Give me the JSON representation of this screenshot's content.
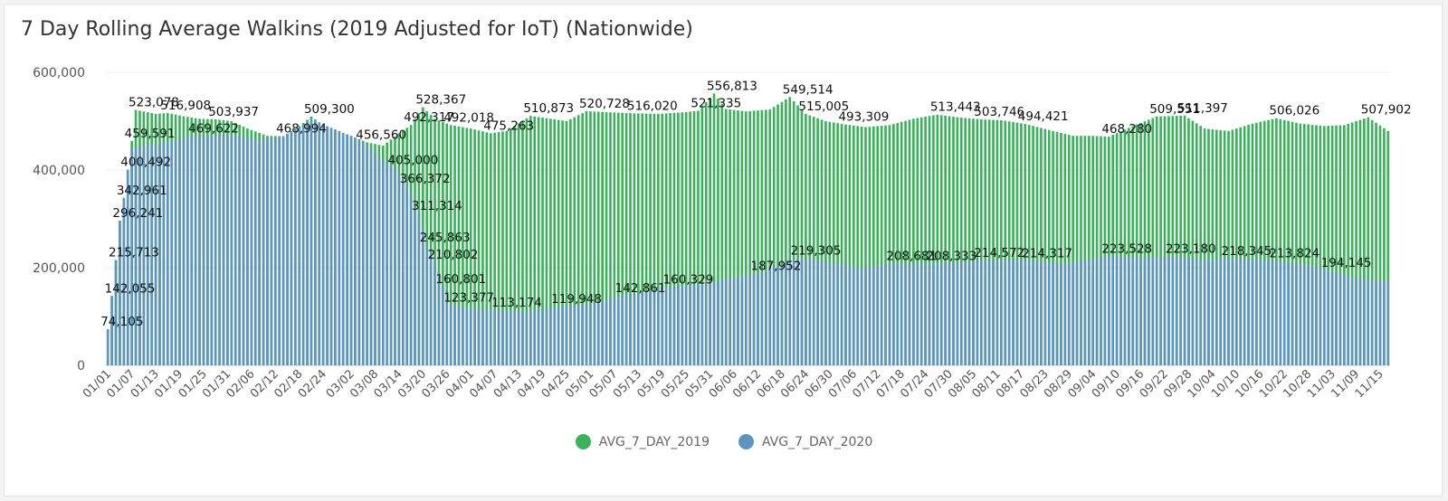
{
  "chart_data": {
    "type": "bar",
    "title": "7 Day Rolling Average Walkins (2019 Adjusted for IoT) (Nationwide)",
    "xlabel": "",
    "ylabel": "",
    "ylim": [
      0,
      600000
    ],
    "yticks": [
      0,
      200000,
      400000,
      600000
    ],
    "ytick_labels": [
      "0",
      "200,000",
      "400,000",
      "600,000"
    ],
    "grid": true,
    "legend_position": "bottom",
    "stacking": "overlaid",
    "x_range": [
      "01/01",
      "11/17"
    ],
    "x_tick_labels": [
      "01/01",
      "01/07",
      "01/13",
      "01/19",
      "01/25",
      "01/31",
      "02/06",
      "02/12",
      "02/18",
      "02/24",
      "03/02",
      "03/08",
      "03/14",
      "03/20",
      "03/26",
      "04/01",
      "04/07",
      "04/13",
      "04/19",
      "04/25",
      "05/01",
      "05/07",
      "05/13",
      "05/19",
      "05/25",
      "05/31",
      "06/06",
      "06/12",
      "06/18",
      "06/24",
      "06/30",
      "07/06",
      "07/12",
      "07/18",
      "07/24",
      "07/30",
      "08/05",
      "08/11",
      "08/17",
      "08/23",
      "08/29",
      "09/04",
      "09/10",
      "09/16",
      "09/22",
      "09/28",
      "10/04",
      "10/10",
      "10/16",
      "10/22",
      "10/28",
      "11/03",
      "11/09",
      "11/15"
    ],
    "series": [
      {
        "name": "AVG_7_DAY_2019",
        "color": "#3cb15b",
        "points": [
          [
            "01/01",
            74105
          ],
          [
            "01/02",
            142055
          ],
          [
            "01/03",
            215713
          ],
          [
            "01/04",
            296241
          ],
          [
            "01/05",
            342961
          ],
          [
            "01/06",
            400492
          ],
          [
            "01/07",
            459591
          ],
          [
            "01/08",
            523078
          ],
          [
            "01/13",
            515000
          ],
          [
            "01/16",
            516908
          ],
          [
            "01/20",
            510000
          ],
          [
            "01/24",
            505000
          ],
          [
            "01/28",
            503937
          ],
          [
            "02/01",
            500000
          ],
          [
            "02/05",
            485000
          ],
          [
            "02/10",
            470000
          ],
          [
            "02/14",
            468994
          ],
          [
            "02/18",
            490000
          ],
          [
            "02/21",
            509300
          ],
          [
            "02/24",
            492000
          ],
          [
            "02/27",
            482000
          ],
          [
            "03/02",
            470000
          ],
          [
            "03/06",
            456560
          ],
          [
            "03/10",
            450000
          ],
          [
            "03/14",
            475000
          ],
          [
            "03/17",
            492317
          ],
          [
            "03/20",
            528367
          ],
          [
            "03/23",
            505000
          ],
          [
            "03/27",
            492018
          ],
          [
            "04/01",
            485000
          ],
          [
            "04/06",
            475263
          ],
          [
            "04/10",
            480000
          ],
          [
            "04/16",
            510873
          ],
          [
            "04/21",
            505000
          ],
          [
            "04/25",
            500000
          ],
          [
            "04/30",
            520728
          ],
          [
            "05/06",
            518000
          ],
          [
            "05/12",
            516020
          ],
          [
            "05/18",
            515000
          ],
          [
            "05/24",
            518000
          ],
          [
            "05/28",
            521335
          ],
          [
            "06/01",
            556813
          ],
          [
            "06/04",
            525000
          ],
          [
            "06/09",
            520000
          ],
          [
            "06/15",
            524000
          ],
          [
            "06/20",
            549514
          ],
          [
            "06/24",
            515005
          ],
          [
            "06/29",
            500000
          ],
          [
            "07/04",
            493309
          ],
          [
            "07/09",
            488000
          ],
          [
            "07/15",
            492000
          ],
          [
            "07/21",
            505000
          ],
          [
            "07/27",
            513443
          ],
          [
            "08/01",
            508000
          ],
          [
            "08/07",
            503746
          ],
          [
            "08/12",
            502000
          ],
          [
            "08/18",
            494421
          ],
          [
            "08/25",
            480000
          ],
          [
            "08/30",
            470000
          ],
          [
            "09/04",
            470000
          ],
          [
            "09/08",
            468280
          ],
          [
            "09/14",
            490000
          ],
          [
            "09/20",
            509551
          ],
          [
            "09/27",
            511397
          ],
          [
            "10/02",
            485000
          ],
          [
            "10/08",
            480000
          ],
          [
            "10/14",
            495000
          ],
          [
            "10/20",
            506026
          ],
          [
            "10/26",
            495000
          ],
          [
            "11/01",
            490000
          ],
          [
            "11/06",
            492000
          ],
          [
            "11/12",
            507902
          ],
          [
            "11/17",
            480000
          ]
        ]
      },
      {
        "name": "AVG_7_DAY_2020",
        "color": "#5e95c0",
        "points": [
          [
            "01/01",
            74105
          ],
          [
            "01/02",
            142055
          ],
          [
            "01/03",
            215713
          ],
          [
            "01/04",
            296241
          ],
          [
            "01/05",
            342961
          ],
          [
            "01/06",
            400492
          ],
          [
            "01/07",
            445000
          ],
          [
            "01/12",
            452000
          ],
          [
            "01/17",
            460000
          ],
          [
            "01/23",
            469622
          ],
          [
            "01/31",
            472000
          ],
          [
            "02/08",
            462000
          ],
          [
            "02/14",
            468994
          ],
          [
            "02/21",
            503000
          ],
          [
            "02/28",
            480000
          ],
          [
            "03/05",
            456560
          ],
          [
            "03/10",
            420000
          ],
          [
            "03/13",
            405000
          ],
          [
            "03/16",
            366372
          ],
          [
            "03/19",
            311314
          ],
          [
            "03/21",
            245863
          ],
          [
            "03/23",
            210802
          ],
          [
            "03/25",
            160801
          ],
          [
            "03/27",
            123377
          ],
          [
            "03/31",
            118000
          ],
          [
            "04/08",
            113174
          ],
          [
            "04/15",
            110000
          ],
          [
            "04/23",
            119948
          ],
          [
            "05/01",
            125000
          ],
          [
            "05/09",
            142861
          ],
          [
            "05/21",
            160329
          ],
          [
            "05/28",
            165000
          ],
          [
            "06/06",
            180000
          ],
          [
            "06/12",
            187952
          ],
          [
            "06/22",
            219305
          ],
          [
            "06/26",
            215000
          ],
          [
            "07/04",
            205000
          ],
          [
            "07/08",
            198000
          ],
          [
            "07/16",
            208681
          ],
          [
            "07/26",
            208333
          ],
          [
            "08/07",
            214572
          ],
          [
            "08/19",
            214317
          ],
          [
            "08/28",
            208000
          ],
          [
            "09/08",
            223528
          ],
          [
            "09/16",
            220000
          ],
          [
            "09/24",
            223180
          ],
          [
            "10/01",
            216000
          ],
          [
            "10/08",
            218345
          ],
          [
            "10/20",
            213824
          ],
          [
            "10/28",
            205000
          ],
          [
            "11/02",
            194145
          ],
          [
            "11/08",
            180000
          ],
          [
            "11/17",
            172000
          ]
        ]
      }
    ],
    "data_labels": [
      {
        "series": "AVG_7_DAY_2020",
        "x": "01/01",
        "value": 74105,
        "text": "74,105"
      },
      {
        "series": "AVG_7_DAY_2020",
        "x": "01/02",
        "value": 142055,
        "text": "142,055"
      },
      {
        "series": "AVG_7_DAY_2020",
        "x": "01/03",
        "value": 215713,
        "text": "215,713"
      },
      {
        "series": "AVG_7_DAY_2020",
        "x": "01/04",
        "value": 296241,
        "text": "296,241"
      },
      {
        "series": "AVG_7_DAY_2020",
        "x": "01/05",
        "value": 342961,
        "text": "342,961"
      },
      {
        "series": "AVG_7_DAY_2020",
        "x": "01/06",
        "value": 400492,
        "text": "400,492"
      },
      {
        "series": "AVG_7_DAY_2019",
        "x": "01/07",
        "value": 459591,
        "text": "459,591"
      },
      {
        "series": "AVG_7_DAY_2019",
        "x": "01/08",
        "value": 523078,
        "text": "523,078"
      },
      {
        "series": "AVG_7_DAY_2019",
        "x": "01/16",
        "value": 516908,
        "text": "516,908"
      },
      {
        "series": "AVG_7_DAY_2020",
        "x": "01/23",
        "value": 469622,
        "text": "469,622"
      },
      {
        "series": "AVG_7_DAY_2019",
        "x": "01/28",
        "value": 503937,
        "text": "503,937"
      },
      {
        "series": "AVG_7_DAY_2020",
        "x": "02/14",
        "value": 468994,
        "text": "468,994"
      },
      {
        "series": "AVG_7_DAY_2019",
        "x": "02/21",
        "value": 509300,
        "text": "509,300"
      },
      {
        "series": "AVG_7_DAY_2020",
        "x": "03/05",
        "value": 456560,
        "text": "456,560"
      },
      {
        "series": "AVG_7_DAY_2019",
        "x": "03/17",
        "value": 492317,
        "text": "492,317"
      },
      {
        "series": "AVG_7_DAY_2019",
        "x": "03/20",
        "value": 528367,
        "text": "528,367"
      },
      {
        "series": "AVG_7_DAY_2020",
        "x": "03/13",
        "value": 405000,
        "text": "405,000"
      },
      {
        "series": "AVG_7_DAY_2020",
        "x": "03/16",
        "value": 366372,
        "text": "366,372"
      },
      {
        "series": "AVG_7_DAY_2020",
        "x": "03/19",
        "value": 311314,
        "text": "311,314"
      },
      {
        "series": "AVG_7_DAY_2020",
        "x": "03/21",
        "value": 245863,
        "text": "245,863"
      },
      {
        "series": "AVG_7_DAY_2020",
        "x": "03/23",
        "value": 210802,
        "text": "210,802"
      },
      {
        "series": "AVG_7_DAY_2020",
        "x": "03/25",
        "value": 160801,
        "text": "160,801"
      },
      {
        "series": "AVG_7_DAY_2020",
        "x": "03/27",
        "value": 123377,
        "text": "123,377"
      },
      {
        "series": "AVG_7_DAY_2019",
        "x": "03/27",
        "value": 492018,
        "text": "492,018"
      },
      {
        "series": "AVG_7_DAY_2019",
        "x": "04/06",
        "value": 475263,
        "text": "475,263"
      },
      {
        "series": "AVG_7_DAY_2020",
        "x": "04/08",
        "value": 113174,
        "text": "113,174"
      },
      {
        "series": "AVG_7_DAY_2019",
        "x": "04/16",
        "value": 510873,
        "text": "510,873"
      },
      {
        "series": "AVG_7_DAY_2020",
        "x": "04/23",
        "value": 119948,
        "text": "119,948"
      },
      {
        "series": "AVG_7_DAY_2019",
        "x": "04/30",
        "value": 520728,
        "text": "520,728"
      },
      {
        "series": "AVG_7_DAY_2020",
        "x": "05/09",
        "value": 142861,
        "text": "142,861"
      },
      {
        "series": "AVG_7_DAY_2019",
        "x": "05/12",
        "value": 516020,
        "text": "516,020"
      },
      {
        "series": "AVG_7_DAY_2020",
        "x": "05/21",
        "value": 160329,
        "text": "160,329"
      },
      {
        "series": "AVG_7_DAY_2019",
        "x": "05/28",
        "value": 521335,
        "text": "521,335"
      },
      {
        "series": "AVG_7_DAY_2019",
        "x": "06/01",
        "value": 556813,
        "text": "556,813"
      },
      {
        "series": "AVG_7_DAY_2020",
        "x": "06/12",
        "value": 187952,
        "text": "187,952"
      },
      {
        "series": "AVG_7_DAY_2019",
        "x": "06/20",
        "value": 549514,
        "text": "549,514"
      },
      {
        "series": "AVG_7_DAY_2020",
        "x": "06/22",
        "value": 219305,
        "text": "219,305"
      },
      {
        "series": "AVG_7_DAY_2019",
        "x": "06/24",
        "value": 515005,
        "text": "515,005"
      },
      {
        "series": "AVG_7_DAY_2019",
        "x": "07/04",
        "value": 493309,
        "text": "493,309"
      },
      {
        "series": "AVG_7_DAY_2020",
        "x": "07/16",
        "value": 208681,
        "text": "208,681"
      },
      {
        "series": "AVG_7_DAY_2020",
        "x": "07/26",
        "value": 208333,
        "text": "208,333"
      },
      {
        "series": "AVG_7_DAY_2019",
        "x": "07/27",
        "value": 513443,
        "text": "513,443"
      },
      {
        "series": "AVG_7_DAY_2019",
        "x": "08/07",
        "value": 503746,
        "text": "503,746"
      },
      {
        "series": "AVG_7_DAY_2020",
        "x": "08/07",
        "value": 214572,
        "text": "214,572"
      },
      {
        "series": "AVG_7_DAY_2019",
        "x": "08/18",
        "value": 494421,
        "text": "494,421"
      },
      {
        "series": "AVG_7_DAY_2020",
        "x": "08/19",
        "value": 214317,
        "text": "214,317"
      },
      {
        "series": "AVG_7_DAY_2019",
        "x": "09/08",
        "value": 468280,
        "text": "468,280"
      },
      {
        "series": "AVG_7_DAY_2020",
        "x": "09/08",
        "value": 223528,
        "text": "223,528"
      },
      {
        "series": "AVG_7_DAY_2019",
        "x": "09/20",
        "value": 509551,
        "text": "509,551"
      },
      {
        "series": "AVG_7_DAY_2020",
        "x": "09/24",
        "value": 223180,
        "text": "223,180"
      },
      {
        "series": "AVG_7_DAY_2019",
        "x": "09/27",
        "value": 511397,
        "text": "511,397"
      },
      {
        "series": "AVG_7_DAY_2020",
        "x": "10/08",
        "value": 218345,
        "text": "218,345"
      },
      {
        "series": "AVG_7_DAY_2019",
        "x": "10/20",
        "value": 506026,
        "text": "506,026"
      },
      {
        "series": "AVG_7_DAY_2020",
        "x": "10/20",
        "value": 213824,
        "text": "213,824"
      },
      {
        "series": "AVG_7_DAY_2020",
        "x": "11/02",
        "value": 194145,
        "text": "194,145"
      },
      {
        "series": "AVG_7_DAY_2019",
        "x": "11/12",
        "value": 507902,
        "text": "507,902"
      }
    ]
  }
}
